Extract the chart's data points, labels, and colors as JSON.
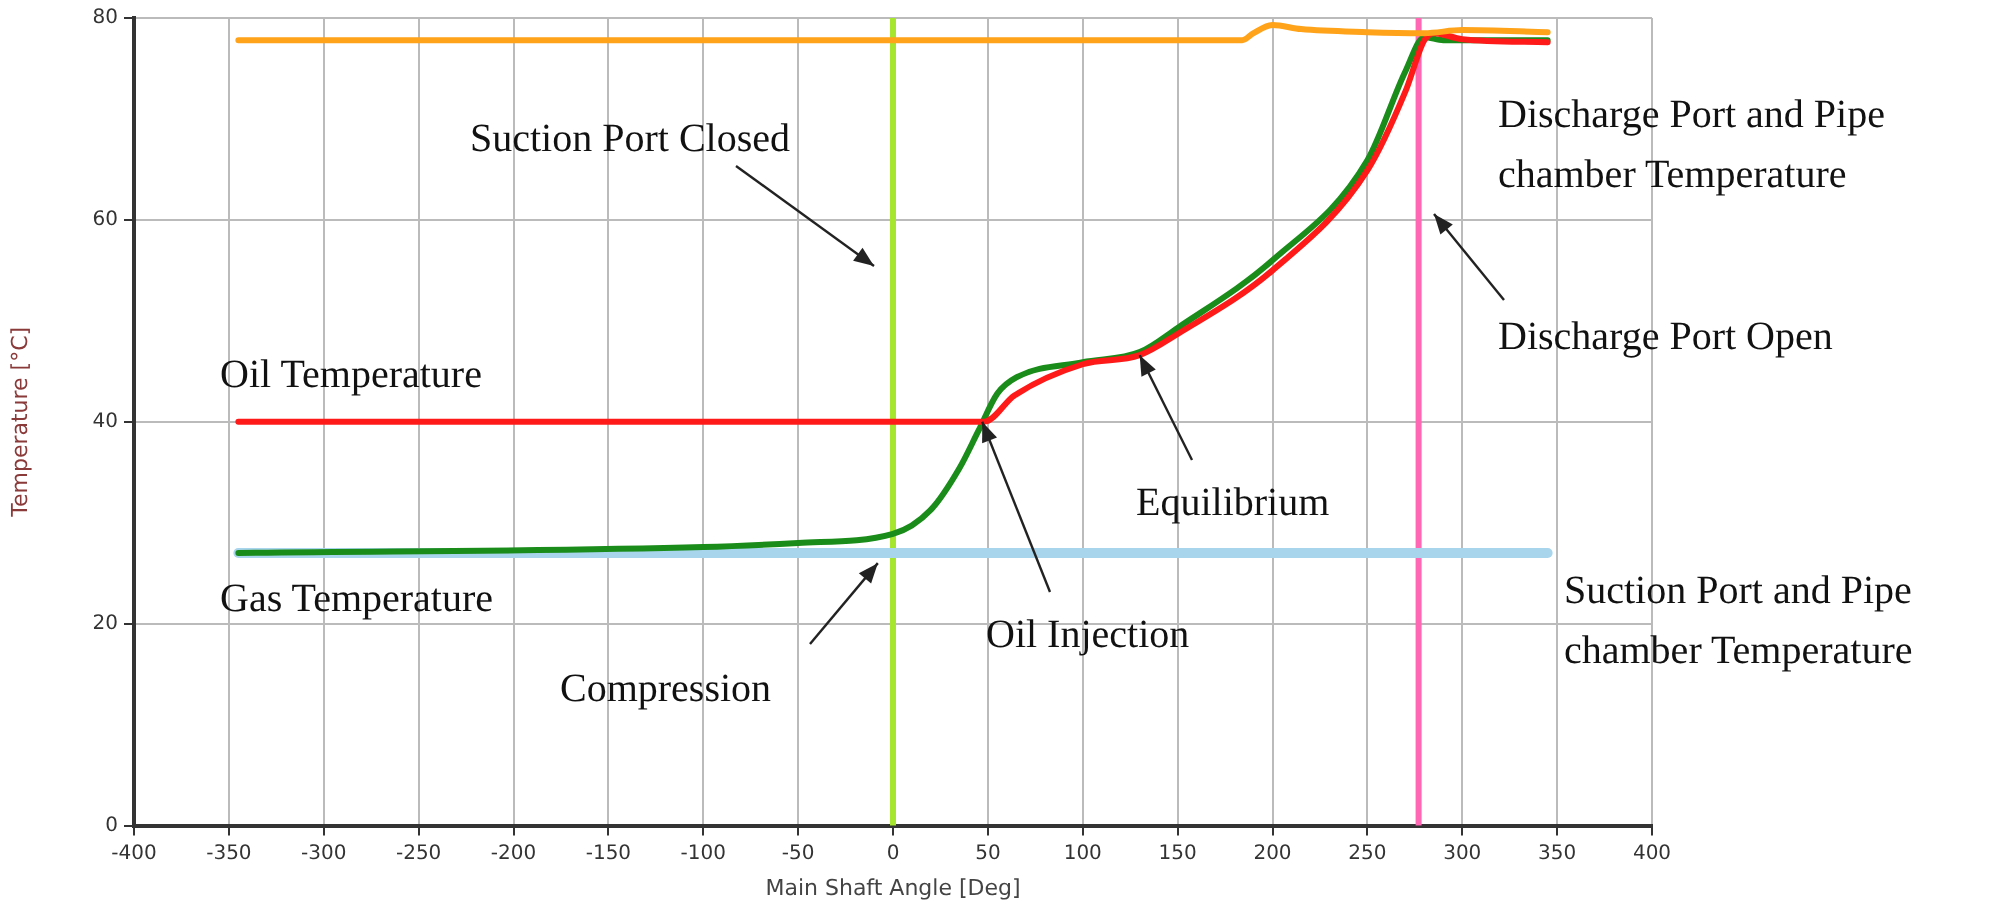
{
  "chart_data": {
    "type": "line",
    "xlabel": "Main Shaft Angle [Deg]",
    "ylabel": "Temperature [°C]",
    "xlim": [
      -400,
      400
    ],
    "xticks": [
      -400,
      -350,
      -300,
      -250,
      -200,
      -150,
      -100,
      -50,
      0,
      50,
      100,
      150,
      200,
      250,
      300,
      350,
      400
    ],
    "ylim": [
      0,
      80
    ],
    "yticks": [
      0,
      20,
      40,
      60,
      80
    ],
    "grid": true,
    "legend": false,
    "marker": "none",
    "line_style": "solid",
    "series": [
      {
        "name": "Discharge Port and Pipe chamber Temperature",
        "color": "#ffa31a",
        "x": [
          -345,
          0,
          184,
          190,
          200,
          215,
          250,
          280,
          300,
          345
        ],
        "values": [
          77.8,
          77.8,
          77.8,
          78.5,
          79.3,
          78.9,
          78.6,
          78.5,
          78.8,
          78.6
        ]
      },
      {
        "name": "Oil Temperature",
        "color": "#ff1a1a",
        "x": [
          -345,
          0,
          48,
          64,
          100,
          130,
          150,
          200,
          250,
          270,
          280,
          285,
          300,
          345
        ],
        "values": [
          40,
          40,
          40,
          42.6,
          45.7,
          46.6,
          48.7,
          55,
          64.9,
          72.7,
          77.8,
          78.5,
          77.9,
          77.6
        ]
      },
      {
        "name": "Gas Temperature",
        "color": "#1a8c1a",
        "x": [
          -345,
          -100,
          -50,
          0,
          20,
          35,
          45,
          55,
          65,
          100,
          130,
          150,
          200,
          250,
          270,
          280,
          290,
          345
        ],
        "values": [
          27,
          27.6,
          28,
          28.9,
          31.3,
          35.4,
          39.1,
          42.8,
          44.4,
          45.9,
          46.9,
          49.3,
          56,
          65.9,
          74.7,
          78.1,
          77.8,
          77.8
        ]
      },
      {
        "name": "Suction Port and Pipe chamber Temperature",
        "color": "#a8d4ec",
        "x": [
          -345,
          345
        ],
        "values": [
          27,
          27
        ]
      }
    ],
    "ref_lines": [
      {
        "axis": "x",
        "value": 0,
        "label": "Suction Port Closed",
        "color": "#a6e62e"
      },
      {
        "axis": "x",
        "value": 277,
        "label": "Discharge Port Open",
        "color": "#ff66b3"
      }
    ],
    "annotations": [
      {
        "text": "Compression",
        "x": -8,
        "y": 26
      },
      {
        "text": "Oil Injection",
        "x": 47,
        "y": 40
      },
      {
        "text": "Equilibrium",
        "x": 130,
        "y": 46.6
      }
    ]
  }
}
